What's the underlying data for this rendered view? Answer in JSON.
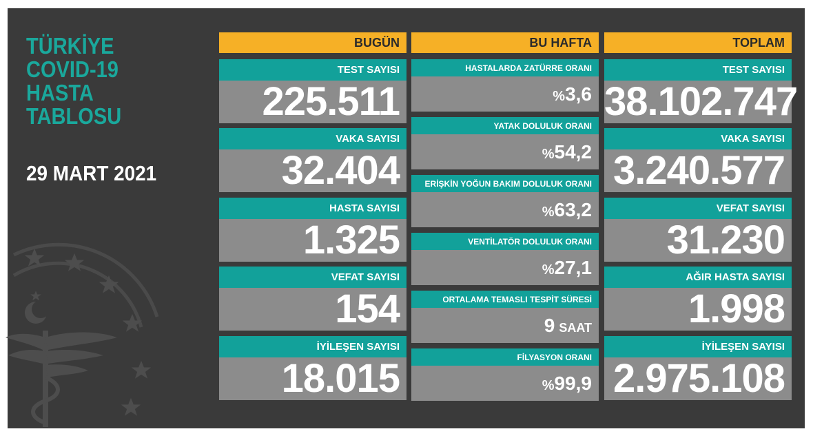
{
  "title_lines": [
    "TÜRKİYE",
    "COVID-19",
    "HASTA",
    "TABLOSU"
  ],
  "date": "29 MART 2021",
  "columns": {
    "today": {
      "header": "BUGÜN",
      "cards": [
        {
          "label": "TEST SAYISI",
          "value": "225.511"
        },
        {
          "label": "VAKA SAYISI",
          "value": "32.404"
        },
        {
          "label": "HASTA SAYISI",
          "value": "1.325"
        },
        {
          "label": "VEFAT SAYISI",
          "value": "154"
        },
        {
          "label": "İYİLEŞEN SAYISI",
          "value": "18.015"
        }
      ]
    },
    "week": {
      "header": "BU HAFTA",
      "cards": [
        {
          "label": "HASTALARDA ZATÜRRE ORANI",
          "prefix": "%",
          "value": "3,6"
        },
        {
          "label": "YATAK DOLULUK ORANI",
          "prefix": "%",
          "value": "54,2"
        },
        {
          "label": "ERİŞKİN YOĞUN BAKIM DOLULUK ORANI",
          "prefix": "%",
          "value": "63,2"
        },
        {
          "label": "VENTİLATÖR DOLULUK ORANI",
          "prefix": "%",
          "value": "27,1"
        },
        {
          "label": "ORTALAMA TEMASLI TESPİT SÜRESİ",
          "value": "9",
          "unit": "SAAT"
        },
        {
          "label": "FİLYASYON ORANI",
          "prefix": "%",
          "value": "99,9"
        }
      ]
    },
    "total": {
      "header": "TOPLAM",
      "cards": [
        {
          "label": "TEST SAYISI",
          "value": "38.102.747"
        },
        {
          "label": "VAKA SAYISI",
          "value": "3.240.577"
        },
        {
          "label": "VEFAT SAYISI",
          "value": "31.230"
        },
        {
          "label": "AĞIR HASTA SAYISI",
          "value": "1.998"
        },
        {
          "label": "İYİLEŞEN SAYISI",
          "value": "2.975.108"
        }
      ]
    }
  },
  "colors": {
    "background": "#3a3a3a",
    "title": "#1aa89c",
    "header": "#f6b026",
    "label": "#12a19a",
    "value_box": "#8c8c8c"
  },
  "icons": [
    "ministry-of-health-emblem-icon"
  ]
}
